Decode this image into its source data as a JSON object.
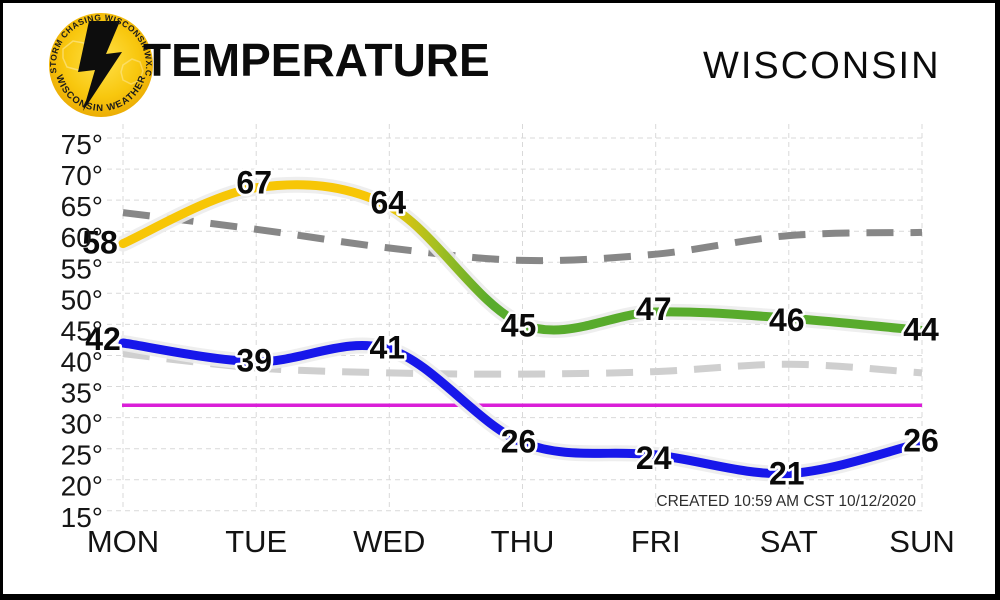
{
  "header": {
    "title": "TEMPERATURE",
    "region": "WISCONSIN",
    "logo": {
      "arc_top_left": "STORM CHASING",
      "arc_top_right": "WISCONSINWX.COM",
      "arc_bottom": "WISCONSIN WEATHER"
    }
  },
  "note": "CREATED 10:59 AM CST 10/12/2020",
  "chart_data": {
    "type": "line",
    "title": "TEMPERATURE",
    "region": "WISCONSIN",
    "categories": [
      "MON",
      "TUE",
      "WED",
      "THU",
      "FRI",
      "SAT",
      "SUN"
    ],
    "series": [
      {
        "name": "forecast-high",
        "values": [
          58,
          67,
          64,
          45,
          47,
          46,
          44
        ],
        "style": "solid-gradient",
        "color_warm": "#f7c606",
        "color_cool": "#58ab2c",
        "labeled": true,
        "label_dx": [
          -23,
          -2,
          -1,
          -4,
          -2,
          -2,
          -1
        ],
        "label_dy": [
          -1,
          -5,
          -4,
          1,
          -3,
          2,
          -1
        ]
      },
      {
        "name": "forecast-low",
        "values": [
          42,
          39,
          41,
          26,
          24,
          21,
          26
        ],
        "style": "solid",
        "color": "#1717ea",
        "labeled": true,
        "label_dx": [
          -20,
          -2,
          -2,
          -4,
          -2,
          -2,
          -1
        ],
        "label_dy": [
          -4,
          -1,
          -2,
          -1,
          3,
          0,
          -2
        ]
      },
      {
        "name": "average-high",
        "values": [
          63,
          60.3,
          57.3,
          55.3,
          56.3,
          59.3,
          59.8
        ],
        "style": "dashed",
        "color": "#878787",
        "labeled": false
      },
      {
        "name": "average-low",
        "values": [
          40.3,
          38,
          37.2,
          37,
          37.4,
          38.6,
          37.2
        ],
        "style": "dashed",
        "color": "#cfcfcf",
        "labeled": false
      }
    ],
    "reference_line": {
      "name": "freezing",
      "value": 32,
      "color": "#da1ed8"
    },
    "ylim": [
      15,
      77
    ],
    "yticks": [
      75,
      70,
      65,
      60,
      55,
      50,
      45,
      40,
      35,
      30,
      25,
      20,
      15
    ],
    "ytick_suffix": "°",
    "grid": true,
    "legend": "none"
  }
}
